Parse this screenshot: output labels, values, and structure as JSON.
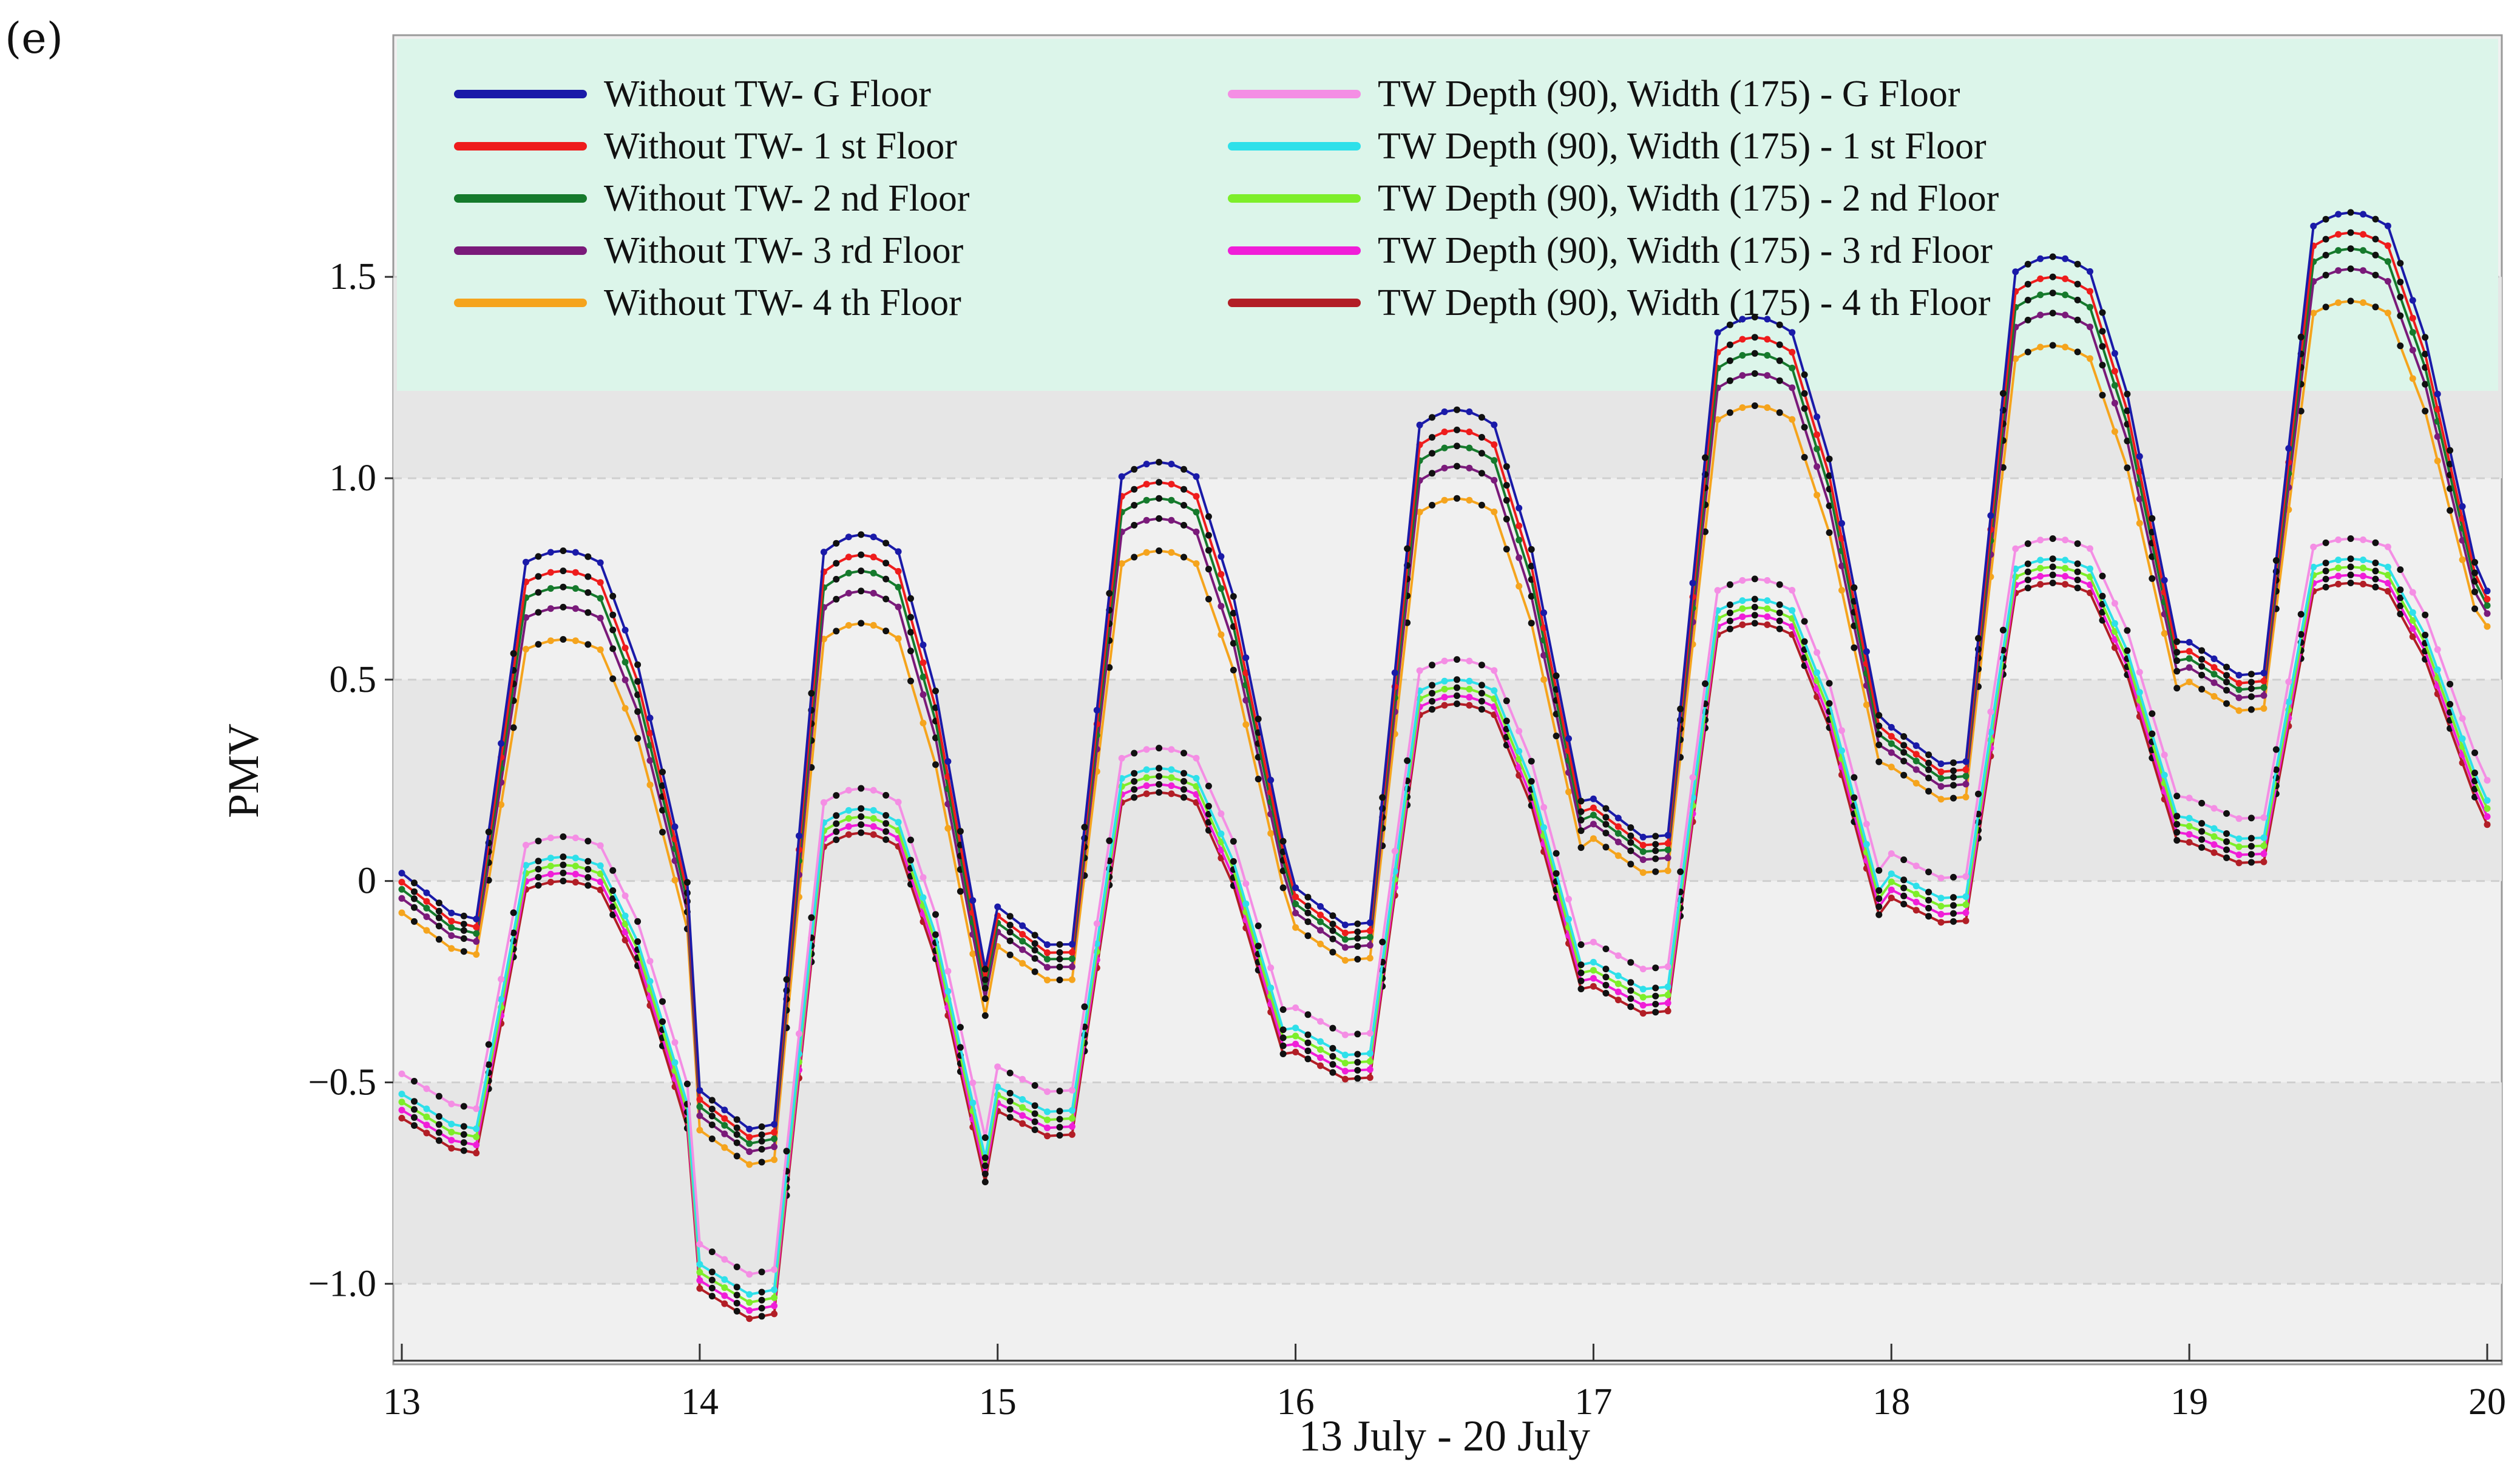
{
  "panel_label": "(e)",
  "chart_data": {
    "type": "line",
    "title": "",
    "xlabel": "13 July - 20 July",
    "ylabel": "PMV",
    "xlim": [
      13,
      20
    ],
    "ylim": [
      -1.2,
      2.1
    ],
    "yticks": [
      -1.0,
      -0.5,
      0,
      0.5,
      1.0,
      1.5
    ],
    "ytick_labels": [
      "−1.0",
      "−0.5",
      "0",
      "0.5",
      "1.0",
      "1.5"
    ],
    "xticks": [
      13,
      14,
      15,
      16,
      17,
      18,
      19,
      20
    ],
    "xtick_labels": [
      "13",
      "14",
      "15",
      "16",
      "17",
      "18",
      "19",
      "20"
    ],
    "samples_per_day": 24,
    "legend_position": "top",
    "day_peaks_without_tw": [
      0.82,
      0.86,
      1.04,
      1.17,
      1.4,
      1.55,
      1.66
    ],
    "day_peaks_tw": [
      0.06,
      0.18,
      0.28,
      0.5,
      0.7,
      0.8,
      0.8
    ],
    "day_minima_without_tw": [
      -0.05,
      -0.64,
      -0.16,
      -0.12,
      0.1,
      0.28,
      0.5,
      0.72
    ],
    "day_minima_tw": [
      -0.58,
      -1.05,
      -0.58,
      -0.44,
      -0.28,
      -0.05,
      0.1,
      0.2
    ],
    "series": [
      {
        "name": "Without TW- G Floor",
        "color": "#1a1aa8",
        "group": "without",
        "offset": 0.0
      },
      {
        "name": "Without TW- 1 st Floor",
        "color": "#ee1c1c",
        "group": "without",
        "offset": -0.05
      },
      {
        "name": "Without TW- 2 nd Floor",
        "color": "#157a2c",
        "group": "without",
        "offset": -0.09
      },
      {
        "name": "Without TW- 3 rd Floor",
        "color": "#7a1a7a",
        "group": "without",
        "offset": -0.14
      },
      {
        "name": "Without TW- 4 th Floor",
        "color": "#f5a41d",
        "group": "without",
        "offset": -0.22
      },
      {
        "name": "TW Depth (90), Width (175) - G Floor",
        "color": "#f48ee4",
        "group": "tw",
        "offset": 0.05
      },
      {
        "name": "TW Depth (90), Width (175) - 1 st Floor",
        "color": "#2ee0ea",
        "group": "tw",
        "offset": 0.0
      },
      {
        "name": "TW Depth (90), Width (175) - 2 nd Floor",
        "color": "#7dee2a",
        "group": "tw",
        "offset": -0.02
      },
      {
        "name": "TW Depth (90), Width (175) - 3 rd Floor",
        "color": "#f01ed8",
        "group": "tw",
        "offset": -0.04
      },
      {
        "name": "TW Depth (90), Width (175) - 4 th Floor",
        "color": "#b21e26",
        "group": "tw",
        "offset": -0.06
      }
    ],
    "colors": {
      "legend_bg": "#dcf5ea",
      "plot_bg": "#f0f0f0",
      "band": "#e6e6e6",
      "grid": "#cfcfcf",
      "marker": "#111111"
    }
  }
}
